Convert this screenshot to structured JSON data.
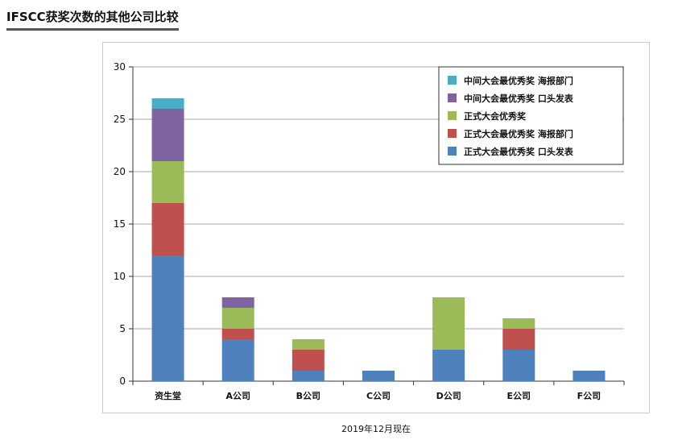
{
  "page_title": "IFSCC获奖次数的其他公司比较",
  "footer_note": "2019年12月现在",
  "chart_data": {
    "type": "bar",
    "stacked": true,
    "categories": [
      "资生堂",
      "A公司",
      "B公司",
      "C公司",
      "D公司",
      "E公司",
      "F公司"
    ],
    "ylim": [
      0,
      30
    ],
    "yticks": [
      0,
      5,
      10,
      15,
      20,
      25,
      30
    ],
    "grid": true,
    "legend_position": "top-right",
    "series": [
      {
        "name": "正式大会最优秀奖 口头发表",
        "color": "#4f81bd",
        "values": [
          12,
          4,
          1,
          1,
          3,
          3,
          1
        ]
      },
      {
        "name": "正式大会最优秀奖 海报部门",
        "color": "#c0504d",
        "values": [
          5,
          1,
          2,
          0,
          0,
          2,
          0
        ]
      },
      {
        "name": "正式大会优秀奖",
        "color": "#9bbb59",
        "values": [
          4,
          2,
          1,
          0,
          5,
          1,
          0
        ]
      },
      {
        "name": "中间大会最优秀奖 口头发表",
        "color": "#8064a2",
        "values": [
          5,
          1,
          0,
          0,
          0,
          0,
          0
        ]
      },
      {
        "name": "中间大会最优秀奖 海报部门",
        "color": "#4bacc6",
        "values": [
          1,
          0,
          0,
          0,
          0,
          0,
          0
        ]
      }
    ]
  }
}
